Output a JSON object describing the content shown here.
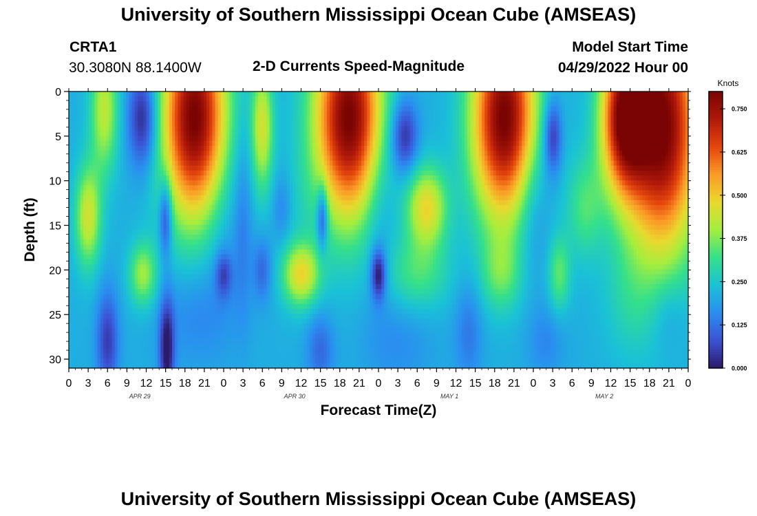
{
  "header": {
    "title": "University of Southern Mississippi Ocean Cube (AMSEAS)",
    "station": "CRTA1",
    "coords": "30.3080N  88.1400W",
    "subtitle": "2-D Currents Speed-Magnitude",
    "model_start_label": "Model Start Time",
    "model_start_value": "04/29/2022 Hour 00"
  },
  "footer": {
    "title": "University of Southern Mississippi Ocean Cube (AMSEAS)"
  },
  "chart_data": {
    "type": "heatmap",
    "title": "2-D Currents Speed-Magnitude",
    "xlabel": "Forecast Time(Z)",
    "ylabel": "Depth (ft)",
    "x_range_hours": [
      0,
      96
    ],
    "xticks_hours": [
      0,
      3,
      6,
      9,
      12,
      15,
      18,
      21,
      24,
      27,
      30,
      33,
      36,
      39,
      42,
      45,
      48,
      51,
      54,
      57,
      60,
      63,
      66,
      69,
      72,
      75,
      78,
      81,
      84,
      87,
      90,
      93,
      96
    ],
    "xtick_labels": [
      "0",
      "3",
      "6",
      "9",
      "12",
      "15",
      "18",
      "21",
      "0",
      "3",
      "6",
      "9",
      "12",
      "15",
      "18",
      "21",
      "0",
      "3",
      "6",
      "9",
      "12",
      "15",
      "18",
      "21",
      "0",
      "3",
      "6",
      "9",
      "12",
      "15",
      "18",
      "21",
      "0"
    ],
    "date_labels": [
      {
        "hour": 11,
        "label": "APR 29"
      },
      {
        "hour": 35,
        "label": "APR 30"
      },
      {
        "hour": 59,
        "label": "MAY 1"
      },
      {
        "hour": 83,
        "label": "MAY 2"
      }
    ],
    "y_range_ft": [
      0,
      31
    ],
    "yticks": [
      0,
      5,
      10,
      15,
      20,
      25,
      30
    ],
    "colorbar": {
      "label": "Knots",
      "range": [
        0,
        0.8
      ],
      "ticks": [
        0.0,
        0.125,
        0.25,
        0.375,
        0.5,
        0.625,
        0.75
      ],
      "tick_labels": [
        "0.000",
        "0.125",
        "0.250",
        "0.375",
        "0.500",
        "0.625",
        "0.750"
      ]
    },
    "colors": [
      "#2b1b6a",
      "#3b52d4",
      "#2a8ef0",
      "#1ac2d6",
      "#35e08a",
      "#a4ee3e",
      "#e9d92e",
      "#fb9a26",
      "#e4460c",
      "#b0190a",
      "#7a0403"
    ],
    "field": {
      "base": 0.21,
      "blobs": [
        {
          "t": 5.5,
          "d": 2,
          "st": 1.5,
          "sd": 5,
          "a": 0.22
        },
        {
          "t": 3,
          "d": 14,
          "st": 1.4,
          "sd": 4,
          "a": 0.24
        },
        {
          "t": 6,
          "d": 28,
          "st": 1.2,
          "sd": 4,
          "a": -0.16
        },
        {
          "t": 11.5,
          "d": 3,
          "st": 1.6,
          "sd": 4,
          "a": -0.21
        },
        {
          "t": 11.5,
          "d": 20.5,
          "st": 1.5,
          "sd": 2.5,
          "a": 0.19
        },
        {
          "t": 15,
          "d": 14,
          "st": 0.7,
          "sd": 3,
          "a": -0.19
        },
        {
          "t": 15.2,
          "d": 29,
          "st": 0.8,
          "sd": 4,
          "a": -0.22
        },
        {
          "t": 19.5,
          "d": 3,
          "st": 3.5,
          "sd": 8,
          "a": 0.6
        },
        {
          "t": 19.5,
          "d": 25,
          "st": 4,
          "sd": 4,
          "a": -0.06
        },
        {
          "t": 24,
          "d": 14,
          "st": 2.5,
          "sd": 8,
          "a": -0.05
        },
        {
          "t": 24,
          "d": 20.5,
          "st": 0.9,
          "sd": 1.8,
          "a": -0.13
        },
        {
          "t": 27,
          "d": 15,
          "st": 1,
          "sd": 8,
          "a": -0.06
        },
        {
          "t": 30,
          "d": 4,
          "st": 1.2,
          "sd": 5,
          "a": 0.24
        },
        {
          "t": 30,
          "d": 20,
          "st": 1,
          "sd": 2.5,
          "a": -0.1
        },
        {
          "t": 33,
          "d": 13,
          "st": 1,
          "sd": 2.5,
          "a": -0.06
        },
        {
          "t": 36,
          "d": 12,
          "st": 1.4,
          "sd": 4,
          "a": 0.02
        },
        {
          "t": 36,
          "d": 20.5,
          "st": 2,
          "sd": 2.5,
          "a": 0.27
        },
        {
          "t": 39,
          "d": 29,
          "st": 1.5,
          "sd": 3,
          "a": -0.1
        },
        {
          "t": 39.3,
          "d": 14,
          "st": 0.6,
          "sd": 2.5,
          "a": -0.2
        },
        {
          "t": 43.5,
          "d": 3,
          "st": 3.8,
          "sd": 8,
          "a": 0.6
        },
        {
          "t": 48,
          "d": 20.5,
          "st": 0.8,
          "sd": 2,
          "a": -0.22
        },
        {
          "t": 48,
          "d": 10,
          "st": 2,
          "sd": 8,
          "a": -0.08
        },
        {
          "t": 52,
          "d": 5,
          "st": 1.5,
          "sd": 3,
          "a": -0.2
        },
        {
          "t": 55.5,
          "d": 13,
          "st": 2.2,
          "sd": 3.2,
          "a": 0.27
        },
        {
          "t": 54,
          "d": 20.5,
          "st": 3.5,
          "sd": 3,
          "a": 0.12
        },
        {
          "t": 51,
          "d": 28,
          "st": 4,
          "sd": 4,
          "a": -0.05
        },
        {
          "t": 67.5,
          "d": 3,
          "st": 3.5,
          "sd": 8,
          "a": 0.6
        },
        {
          "t": 67,
          "d": 20.5,
          "st": 2.2,
          "sd": 3,
          "a": 0.12
        },
        {
          "t": 62,
          "d": 27,
          "st": 1.5,
          "sd": 4,
          "a": -0.08
        },
        {
          "t": 72,
          "d": 12,
          "st": 2,
          "sd": 6,
          "a": -0.08
        },
        {
          "t": 75,
          "d": 5,
          "st": 1,
          "sd": 3,
          "a": -0.19
        },
        {
          "t": 76,
          "d": 20.5,
          "st": 1.2,
          "sd": 3,
          "a": 0.14
        },
        {
          "t": 74,
          "d": 28,
          "st": 2,
          "sd": 3,
          "a": -0.06
        },
        {
          "t": 80,
          "d": 13,
          "st": 2,
          "sd": 4,
          "a": 0.12
        },
        {
          "t": 86,
          "d": 3,
          "st": 2.5,
          "sd": 6,
          "a": 0.5
        },
        {
          "t": 92,
          "d": 4,
          "st": 4,
          "sd": 10,
          "a": 0.6
        },
        {
          "t": 87,
          "d": 23,
          "st": 3,
          "sd": 5,
          "a": 0.06
        },
        {
          "t": 93,
          "d": 25,
          "st": 2,
          "sd": 3,
          "a": -0.05
        }
      ]
    }
  }
}
